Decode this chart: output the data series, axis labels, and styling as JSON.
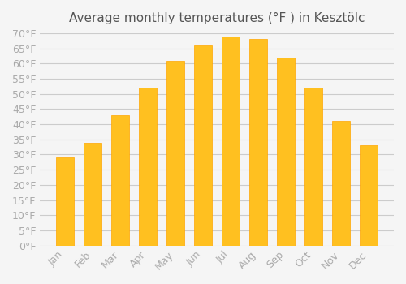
{
  "title": "Average monthly temperatures (°F ) in Kesztölc",
  "months": [
    "Jan",
    "Feb",
    "Mar",
    "Apr",
    "May",
    "Jun",
    "Jul",
    "Aug",
    "Sep",
    "Oct",
    "Nov",
    "Dec"
  ],
  "values": [
    29,
    34,
    43,
    52,
    61,
    66,
    69,
    68,
    62,
    52,
    41,
    33
  ],
  "bar_color": "#FFC020",
  "bar_edge_color": "#FFA500",
  "background_color": "#F5F5F5",
  "grid_color": "#CCCCCC",
  "text_color": "#AAAAAA",
  "ylim": [
    0,
    70
  ],
  "ytick_step": 5,
  "title_fontsize": 11,
  "tick_fontsize": 9
}
